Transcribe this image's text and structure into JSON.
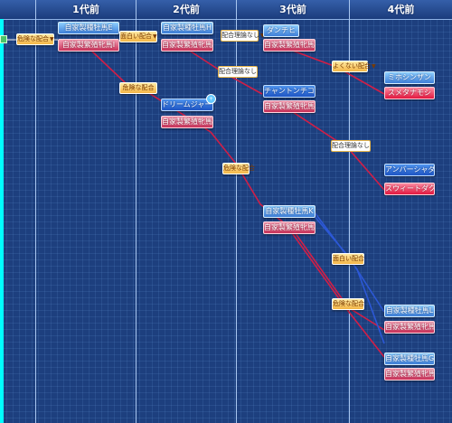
{
  "header": {
    "generations": [
      "1代前",
      "2代前",
      "3代前",
      "4代前"
    ]
  },
  "gen1": {
    "tag": "危険な配合",
    "sire": "自家製種牡馬E",
    "dam": "自家製繁殖牝馬I"
  },
  "gen2": {
    "top_tag": "面白い配合",
    "sire": "自家製種牡馬H",
    "dam": "自家製繁殖牝馬H",
    "mid_tag": "危険な配合",
    "sire2": "ドリームジャーニー",
    "dam2": "自家製繁殖牝馬K"
  },
  "gen3": {
    "top_tag": "配合理論なし",
    "sire": "ダンチヒ",
    "dam": "自家製繁殖牝馬D",
    "tag2": "配合理論なし",
    "sire2": "チャントンチコート",
    "dam2": "自家製繁殖牝馬E",
    "tag3": "危険な配合",
    "sire3": "自家製種牡馬K",
    "dam3": "自家製繁殖牝馬F"
  },
  "gen4": {
    "tag1": "よくない配合",
    "sire1": "ミホシンザン",
    "dam1": "スメタナモシ",
    "tag2": "配合理論なし",
    "sire2": "アンバーシャダイ",
    "dam2": "スウィートダクニー",
    "tag3": "面白い配合",
    "tag4": "危険な配合",
    "sire3": "自家製種牡馬L",
    "dam3": "自家製繁殖牝馬J",
    "sire4": "自家製種牡馬G",
    "dam4": "自家製繁殖牝馬L"
  },
  "colors": {
    "background": "#1d3f7e",
    "sire_box": "#3e7fd8",
    "dam_box": "#c9325a",
    "dam_line": "#d21e46",
    "sire_line": "#2c58d6",
    "tag_gold": "#f4b646"
  },
  "icons": {
    "dropdown": "▼",
    "new_badge": "+"
  }
}
